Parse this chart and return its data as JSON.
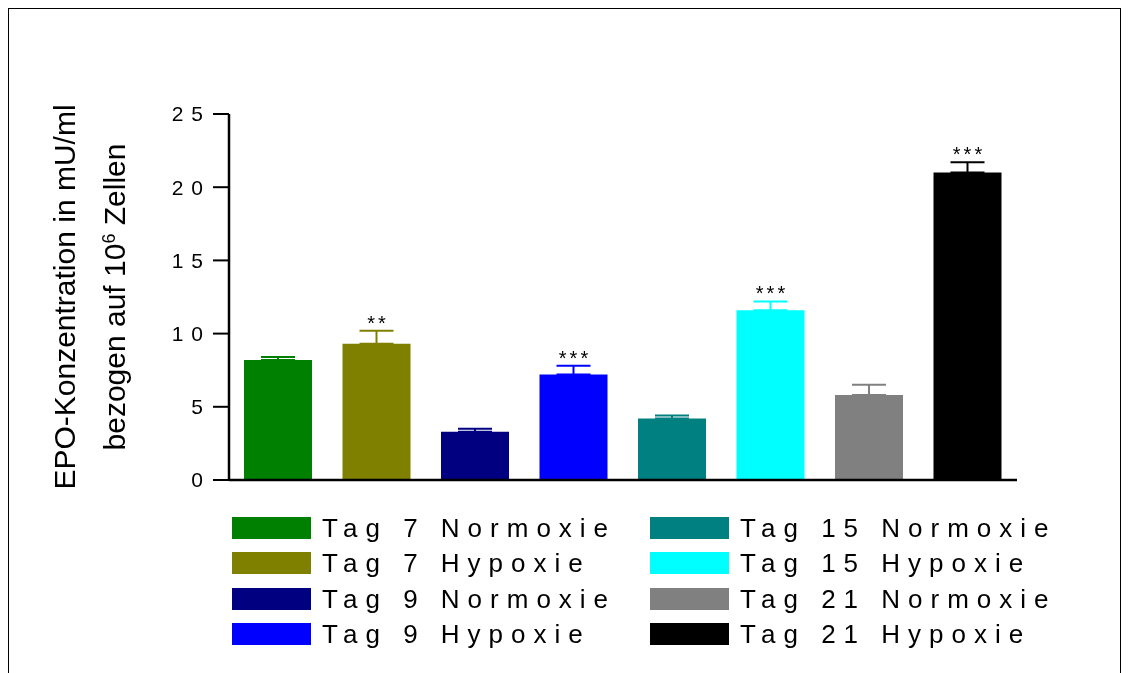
{
  "chart_data": {
    "type": "bar",
    "ylabel": "EPO-Konzentration in mU/ml\nbezogen auf 10$^{6}$ Zellen",
    "categories": [
      null
    ],
    "series": [
      {
        "name": "Tag 7 Normoxie",
        "color": "#008000",
        "values": [
          8.2
        ],
        "errors": [
          [
            8.2,
            8.4
          ]
        ]
      },
      {
        "name": "Tag 7 Hypoxie",
        "color": "#808000",
        "values": [
          9.3
        ],
        "errors": [
          [
            9.3,
            10.2
          ]
        ],
        "value_labels": [
          "**"
        ]
      },
      {
        "name": "Tag 9 Normoxie",
        "color": "#000080",
        "values": [
          3.3
        ],
        "errors": [
          [
            3.3,
            3.5
          ]
        ]
      },
      {
        "name": "Tag 9 Hypoxie",
        "color": "#0000ff",
        "values": [
          7.2
        ],
        "errors": [
          [
            7.2,
            7.8
          ]
        ],
        "value_labels": [
          "***"
        ]
      },
      {
        "name": "Tag 15 Normoxie",
        "color": "#008080",
        "values": [
          4.2
        ],
        "errors": [
          [
            4.2,
            4.4
          ]
        ]
      },
      {
        "name": "Tag 15 Hypoxie",
        "color": "#00ffff",
        "values": [
          11.6
        ],
        "errors": [
          [
            11.6,
            12.2
          ]
        ],
        "value_labels": [
          "***"
        ]
      },
      {
        "name": "Tag 21 Normoxie",
        "color": "#808080",
        "values": [
          5.8
        ],
        "errors": [
          [
            5.8,
            6.5
          ]
        ]
      },
      {
        "name": "Tag 21 Hypoxie",
        "color": "#000000",
        "values": [
          21.0
        ],
        "errors": [
          [
            21.0,
            21.7
          ]
        ],
        "value_labels": [
          "***"
        ]
      }
    ],
    "ylim": [
      0,
      25
    ],
    "yticks": [
      0,
      5,
      10,
      15,
      20,
      25
    ],
    "legend": "bottom",
    "tick_labels": "y"
  }
}
